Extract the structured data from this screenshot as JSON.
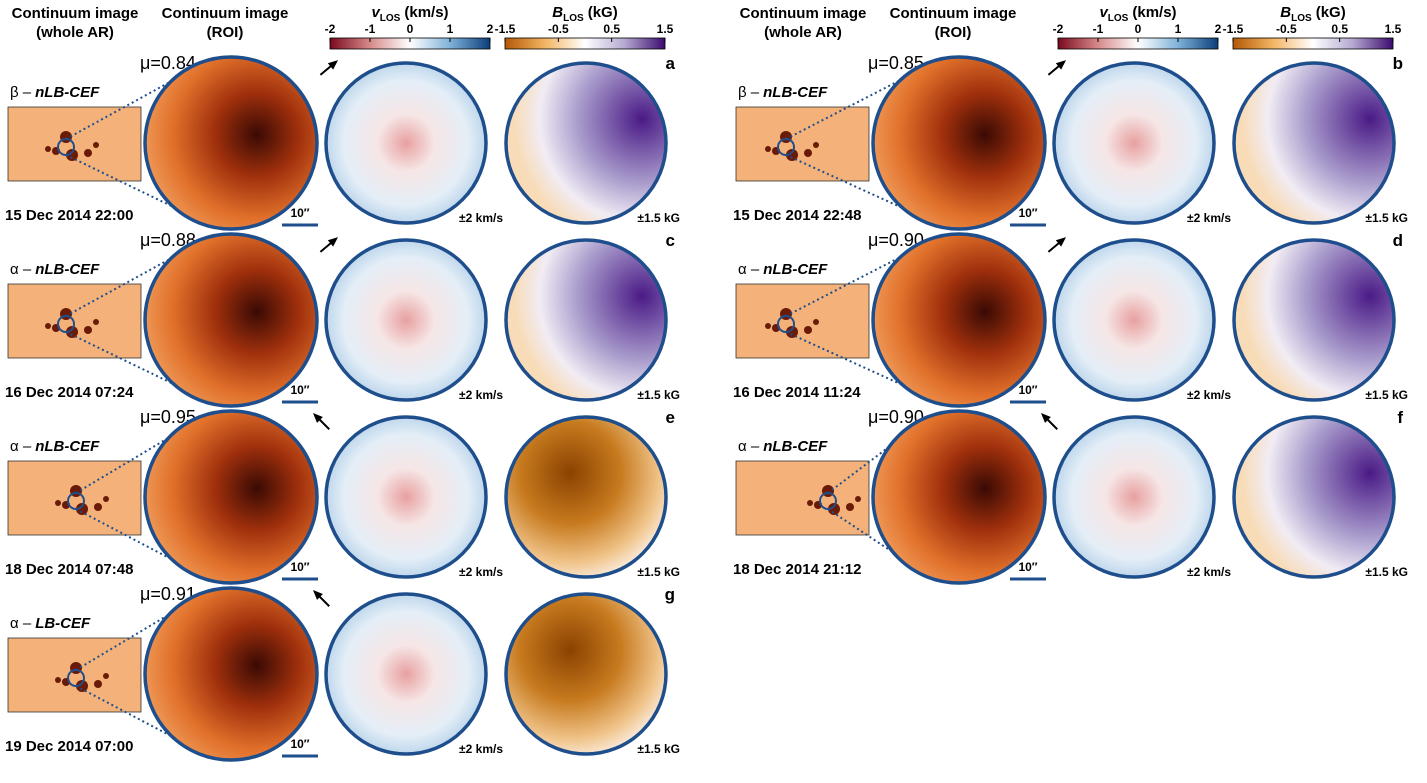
{
  "columns": [
    {
      "headers": [
        [
          "Continuum image",
          "(whole AR)"
        ],
        [
          "Continuum image",
          "(ROI)"
        ]
      ],
      "colorbars": [
        {
          "symbol": "v",
          "sub": "LOS",
          "unit": "(km/s)",
          "ticks": [
            -2,
            -1,
            0,
            1,
            2
          ]
        },
        {
          "symbol": "B",
          "sub": "LOS",
          "unit": "(kG)",
          "ticks": [
            -1.5,
            -0.5,
            0.5,
            1.5
          ]
        }
      ],
      "panels": [
        {
          "mu": "μ=0.84",
          "label": [
            "β –",
            "nLB-CEF"
          ],
          "date": "15 Dec 2014 22:00",
          "scale": "10″",
          "vrange": "±2 km/s",
          "brange": "±1.5 kG",
          "letter": "a"
        },
        {
          "mu": "μ=0.88",
          "label": [
            "α –",
            "nLB-CEF"
          ],
          "date": "16 Dec 2014 07:24",
          "scale": "10″",
          "vrange": "±2 km/s",
          "brange": "±1.5 kG",
          "letter": "c"
        },
        {
          "mu": "μ=0.95",
          "label": [
            "α –",
            "nLB-CEF"
          ],
          "date": "18 Dec 2014 07:48",
          "scale": "10″",
          "vrange": "±2 km/s",
          "brange": "±1.5 kG",
          "letter": "e"
        },
        {
          "mu": "μ=0.91",
          "label": [
            "α –",
            "LB-CEF"
          ],
          "date": "19 Dec 2014 07:00",
          "scale": "10″",
          "vrange": "±2 km/s",
          "brange": "±1.5 kG",
          "letter": "g"
        }
      ]
    },
    {
      "headers": [
        [
          "Continuum image",
          "(whole AR)"
        ],
        [
          "Continuum image",
          "(ROI)"
        ]
      ],
      "colorbars": [
        {
          "symbol": "v",
          "sub": "LOS",
          "unit": "(km/s)",
          "ticks": [
            -2,
            -1,
            0,
            1,
            2
          ]
        },
        {
          "symbol": "B",
          "sub": "LOS",
          "unit": "(kG)",
          "ticks": [
            -1.5,
            -0.5,
            0.5,
            1.5
          ]
        }
      ],
      "panels": [
        {
          "mu": "μ=0.85",
          "label": [
            "β –",
            "nLB-CEF"
          ],
          "date": "15 Dec 2014 22:48",
          "scale": "10″",
          "vrange": "±2 km/s",
          "brange": "±1.5 kG",
          "letter": "b"
        },
        {
          "mu": "μ=0.90",
          "label": [
            "α –",
            "nLB-CEF"
          ],
          "date": "16 Dec 2014 11:24",
          "scale": "10″",
          "vrange": "±2 km/s",
          "brange": "±1.5 kG",
          "letter": "d"
        },
        {
          "mu": "μ=0.90",
          "label": [
            "α –",
            "nLB-CEF"
          ],
          "date": "18 Dec 2014 21:12",
          "scale": "10″",
          "vrange": "±2 km/s",
          "brange": "±1.5 kG",
          "letter": "f"
        }
      ]
    }
  ]
}
